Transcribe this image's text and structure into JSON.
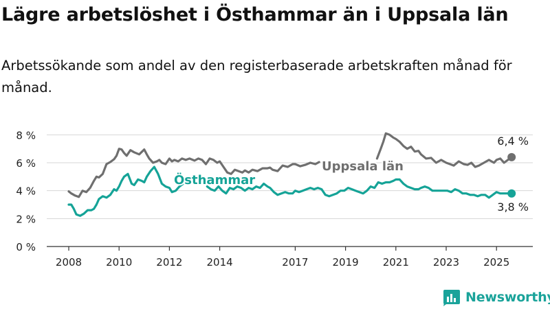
{
  "title": "Lägre arbetslöshet i Östhammar än i Uppsala län",
  "subtitle": "Arbetssökande som andel av den registerbaserade arbetskraften månad för månad.",
  "logo_text": "Newsworthy",
  "colors": {
    "uppsala": "#6f6f6f",
    "osthammar": "#15a397",
    "grid": "#d6d6d6",
    "axis": "#333333",
    "brand": "#1aa39a"
  },
  "chart_data": {
    "type": "line",
    "title": "",
    "xlabel": "",
    "ylabel": "",
    "ylim": [
      0,
      9
    ],
    "xlim": [
      2007.6,
      2026
    ],
    "grid": "horizontal",
    "y_ticks": [
      {
        "value": 0,
        "label": "0 %"
      },
      {
        "value": 2,
        "label": "2 %"
      },
      {
        "value": 4,
        "label": "4 %"
      },
      {
        "value": 6,
        "label": "6 %"
      },
      {
        "value": 8,
        "label": "8 %"
      }
    ],
    "x_ticks": [
      {
        "value": 2008,
        "label": "2008"
      },
      {
        "value": 2010,
        "label": "2010"
      },
      {
        "value": 2012,
        "label": "2012"
      },
      {
        "value": 2014,
        "label": "2014"
      },
      {
        "value": 2017,
        "label": "2017"
      },
      {
        "value": 2019,
        "label": "2019"
      },
      {
        "value": 2021,
        "label": "2021"
      },
      {
        "value": 2023,
        "label": "2023"
      },
      {
        "value": 2025,
        "label": "2025"
      }
    ],
    "series": [
      {
        "name": "Uppsala län",
        "color": "#6f6f6f",
        "label_position": "above-line",
        "end_label": "6,4 %",
        "x": [
          2008.0,
          2008.1,
          2008.25,
          2008.4,
          2008.55,
          2008.7,
          2008.85,
          2009.0,
          2009.1,
          2009.2,
          2009.35,
          2009.5,
          2009.65,
          2009.8,
          2009.9,
          2010.0,
          2010.1,
          2010.2,
          2010.3,
          2010.45,
          2010.6,
          2010.8,
          2011.0,
          2011.1,
          2011.2,
          2011.35,
          2011.5,
          2011.6,
          2011.7,
          2011.85,
          2012.0,
          2012.1,
          2012.2,
          2012.35,
          2012.5,
          2012.65,
          2012.8,
          2013.0,
          2013.15,
          2013.3,
          2013.45,
          2013.6,
          2013.75,
          2013.9,
          2014.0,
          2014.15,
          2014.3,
          2014.45,
          2014.6,
          2014.75,
          2014.9,
          2015.0,
          2015.15,
          2015.3,
          2015.5,
          2015.7,
          2015.9,
          2016.0,
          2016.1,
          2016.3,
          2016.5,
          2016.7,
          2016.9,
          2017.0,
          2017.2,
          2017.4,
          2017.6,
          2017.8,
          2017.95,
          null,
          2020.25,
          2020.4,
          2020.5,
          2020.6,
          2020.75,
          2020.9,
          2021.0,
          2021.15,
          2021.3,
          2021.45,
          2021.6,
          2021.75,
          2021.9,
          2022.0,
          2022.2,
          2022.4,
          2022.6,
          2022.8,
          2023.0,
          2023.15,
          2023.3,
          2023.5,
          2023.7,
          2023.85,
          2024.0,
          2024.15,
          2024.3,
          2024.5,
          2024.7,
          2024.9,
          2025.0,
          2025.15,
          2025.3,
          2025.45,
          2025.6
        ],
        "values": [
          3.95,
          3.8,
          3.65,
          3.55,
          4.0,
          3.9,
          4.2,
          4.7,
          5.0,
          4.95,
          5.2,
          5.9,
          6.05,
          6.25,
          6.5,
          7.0,
          6.95,
          6.7,
          6.5,
          6.9,
          6.75,
          6.6,
          6.95,
          6.6,
          6.3,
          6.0,
          6.1,
          6.2,
          6.0,
          5.9,
          6.3,
          6.1,
          6.2,
          6.1,
          6.3,
          6.2,
          6.3,
          6.15,
          6.3,
          6.2,
          5.9,
          6.3,
          6.2,
          6.0,
          6.1,
          5.7,
          5.3,
          5.2,
          5.5,
          5.4,
          5.3,
          5.45,
          5.3,
          5.5,
          5.4,
          5.6,
          5.6,
          5.65,
          5.5,
          5.4,
          5.8,
          5.7,
          5.9,
          5.9,
          5.75,
          5.85,
          6.0,
          5.9,
          6.05,
          null,
          6.3,
          7.0,
          7.5,
          8.1,
          8.0,
          7.8,
          7.7,
          7.5,
          7.2,
          7.0,
          7.15,
          6.8,
          6.85,
          6.6,
          6.3,
          6.35,
          6.0,
          6.2,
          6.0,
          5.9,
          5.8,
          6.1,
          5.9,
          5.85,
          6.0,
          5.7,
          5.8,
          6.0,
          6.2,
          6.0,
          6.2,
          6.3,
          6.0,
          6.2,
          6.4
        ]
      },
      {
        "name": "Östhammar",
        "color": "#15a397",
        "label_position": "above-line",
        "end_label": "3,8 %",
        "x": [
          2008.0,
          2008.1,
          2008.2,
          2008.3,
          2008.45,
          2008.6,
          2008.75,
          2008.9,
          2009.0,
          2009.1,
          2009.2,
          2009.35,
          2009.5,
          2009.65,
          2009.8,
          2009.9,
          2010.0,
          2010.1,
          2010.2,
          2010.35,
          2010.5,
          2010.6,
          2010.75,
          2010.9,
          2011.0,
          2011.1,
          2011.25,
          2011.4,
          2011.55,
          2011.7,
          2011.85,
          2012.0,
          2012.1,
          2012.25,
          2012.4,
          2012.55,
          2012.7,
          null,
          2013.5,
          2013.65,
          2013.8,
          2013.95,
          2014.1,
          2014.25,
          2014.4,
          2014.55,
          2014.7,
          2014.85,
          2015.0,
          2015.15,
          2015.3,
          2015.45,
          2015.6,
          2015.75,
          2015.9,
          2016.0,
          2016.15,
          2016.3,
          2016.45,
          2016.6,
          2016.75,
          2016.9,
          2017.0,
          2017.15,
          2017.3,
          2017.45,
          2017.6,
          2017.75,
          2017.9,
          2018.05,
          2018.2,
          2018.35,
          2018.5,
          2018.65,
          2018.8,
          2018.95,
          2019.1,
          2019.25,
          2019.4,
          2019.55,
          2019.7,
          2019.85,
          2020.0,
          2020.15,
          2020.3,
          2020.45,
          2020.6,
          2020.75,
          2020.9,
          2021.0,
          2021.15,
          2021.3,
          2021.45,
          2021.6,
          2021.75,
          2021.9,
          2022.0,
          2022.15,
          2022.3,
          2022.45,
          2022.6,
          2022.75,
          2022.9,
          2023.05,
          2023.2,
          2023.35,
          2023.5,
          2023.65,
          2023.8,
          2023.95,
          2024.1,
          2024.25,
          2024.4,
          2024.55,
          2024.7,
          2024.85,
          2025.0,
          2025.15,
          2025.3,
          2025.45,
          2025.6
        ],
        "values": [
          3.0,
          3.0,
          2.7,
          2.3,
          2.2,
          2.35,
          2.6,
          2.6,
          2.7,
          3.0,
          3.4,
          3.6,
          3.5,
          3.7,
          4.1,
          4.0,
          4.3,
          4.7,
          5.0,
          5.2,
          4.5,
          4.4,
          4.8,
          4.7,
          4.6,
          5.0,
          5.4,
          5.7,
          5.2,
          4.5,
          4.3,
          4.2,
          3.9,
          4.0,
          4.3,
          4.5,
          4.5,
          null,
          4.3,
          4.1,
          4.0,
          4.3,
          4.0,
          3.8,
          4.2,
          4.1,
          4.3,
          4.2,
          4.0,
          4.2,
          4.1,
          4.3,
          4.2,
          4.5,
          4.3,
          4.2,
          3.9,
          3.7,
          3.8,
          3.9,
          3.8,
          3.8,
          4.0,
          3.9,
          4.0,
          4.1,
          4.2,
          4.1,
          4.2,
          4.1,
          3.7,
          3.6,
          3.7,
          3.8,
          4.0,
          4.0,
          4.2,
          4.1,
          4.0,
          3.9,
          3.8,
          4.0,
          4.3,
          4.2,
          4.6,
          4.5,
          4.6,
          4.6,
          4.7,
          4.8,
          4.8,
          4.5,
          4.3,
          4.2,
          4.1,
          4.1,
          4.2,
          4.3,
          4.2,
          4.0,
          4.0,
          4.0,
          4.0,
          4.0,
          3.9,
          4.1,
          4.0,
          3.8,
          3.8,
          3.7,
          3.7,
          3.6,
          3.7,
          3.7,
          3.5,
          3.7,
          3.9,
          3.8,
          3.8,
          3.8,
          3.8
        ]
      }
    ]
  }
}
